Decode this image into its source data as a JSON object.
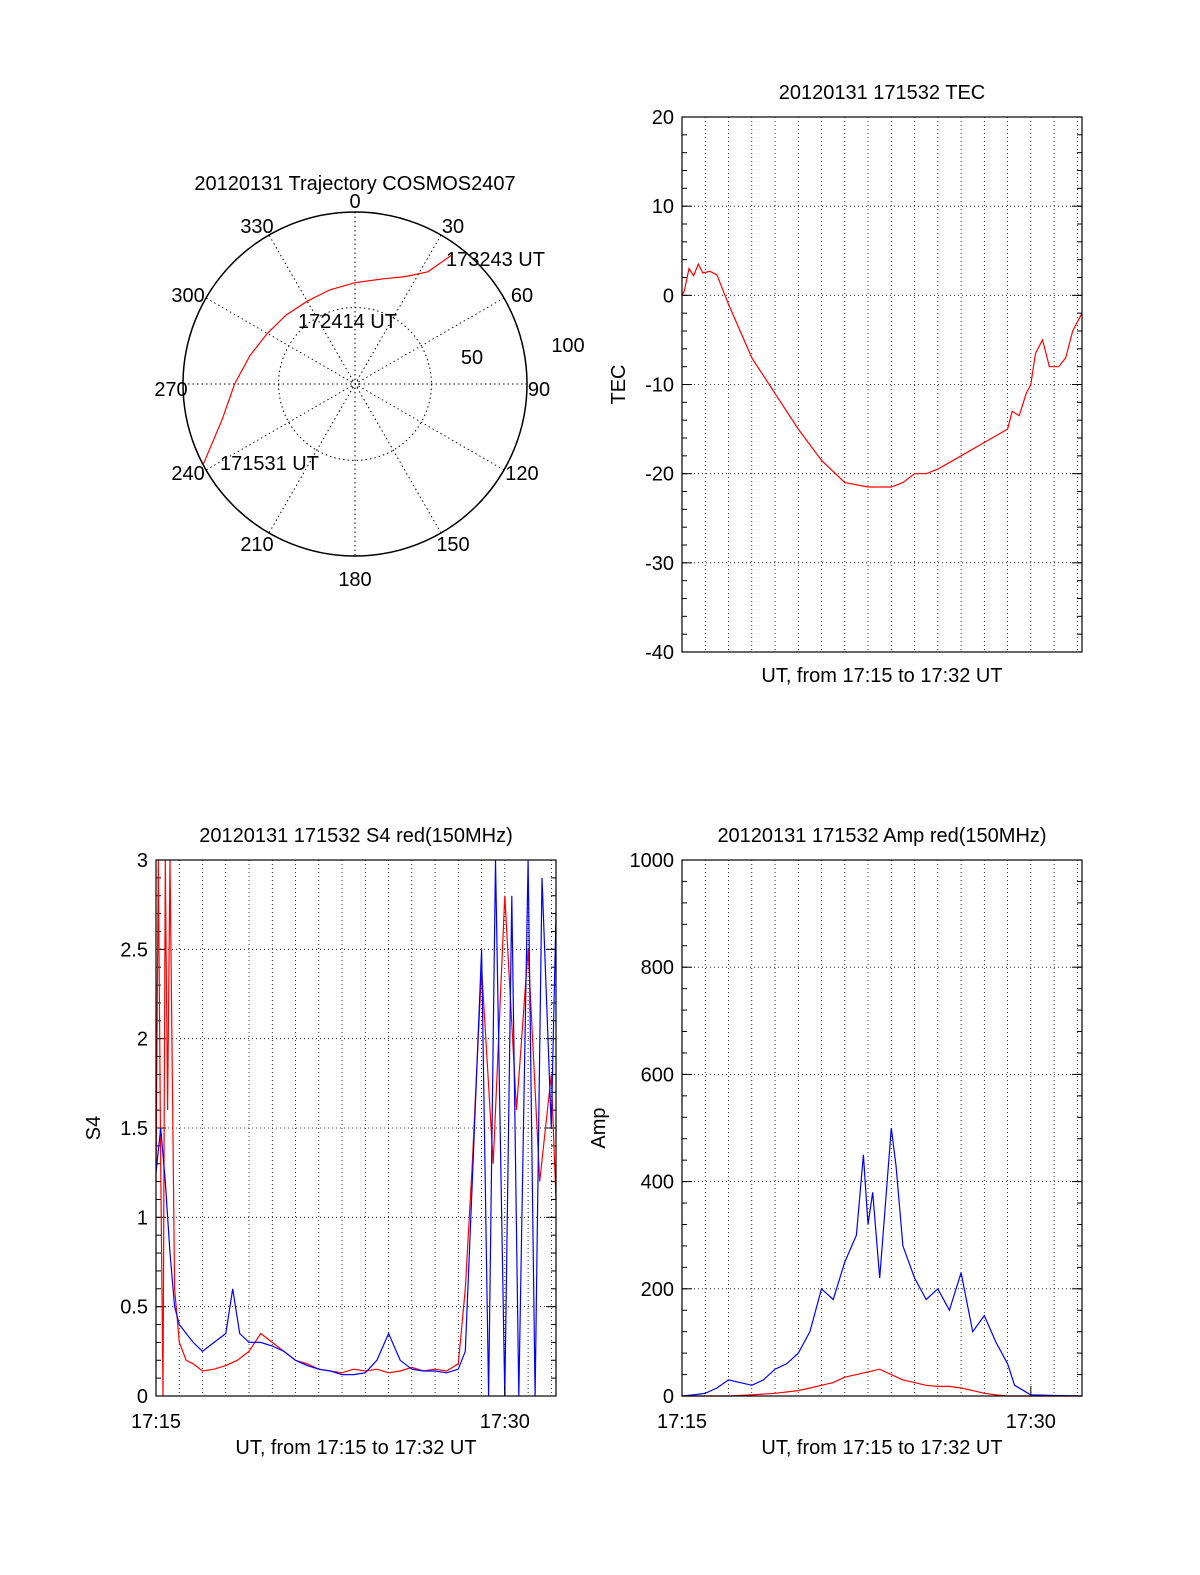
{
  "chart_data": [
    {
      "type": "polar",
      "title": "20120131 Trajectory COSMOS2407",
      "azimuth_labels": [
        "0",
        "30",
        "60",
        "90",
        "120",
        "150",
        "180",
        "210",
        "240",
        "270",
        "300",
        "330"
      ],
      "elevation_rings": [
        {
          "label": "100",
          "elevation": 0
        },
        {
          "label": "50",
          "elevation": 50
        },
        {
          "label": "",
          "elevation": 90
        }
      ],
      "series": [
        {
          "color": "#ff0000",
          "points": [
            [
              242,
              0
            ],
            [
              255,
              18
            ],
            [
              270,
              27
            ],
            [
              285,
              33
            ],
            [
              300,
              37
            ],
            [
              315,
              39
            ],
            [
              330,
              40
            ],
            [
              345,
              39
            ],
            [
              0,
              37
            ],
            [
              15,
              33
            ],
            [
              25,
              28
            ],
            [
              33,
              20
            ],
            [
              37,
              5
            ]
          ]
        }
      ],
      "annotations": [
        "171531 UT",
        "172414 UT",
        "173243 UT"
      ]
    },
    {
      "type": "line",
      "title": "20120131 171532 TEC",
      "xlabel": "UT, from 17:15 to 17:32 UT",
      "ylabel": "TEC",
      "xlim": [
        0,
        17.2
      ],
      "ylim": [
        -40,
        20
      ],
      "yticks": [
        "20",
        "10",
        "0",
        "-10",
        "-20",
        "-30",
        "-40"
      ],
      "grid": true,
      "series": [
        {
          "color": "#ff0000",
          "x": [
            0,
            0.1,
            0.3,
            0.5,
            0.7,
            0.9,
            1.2,
            1.5,
            2.0,
            3.0,
            4.0,
            5.0,
            6.0,
            7.0,
            8.0,
            9.0,
            9.5,
            10.0,
            10.5,
            11.0,
            12.0,
            13.0,
            14.0,
            14.2,
            14.5,
            14.8,
            15.0,
            15.2,
            15.5,
            15.8,
            16.2,
            16.5,
            16.8,
            17.2
          ],
          "y": [
            0,
            0.5,
            3,
            2.2,
            3.5,
            2.5,
            2.7,
            2.3,
            -1,
            -7,
            -11,
            -15,
            -18.5,
            -21,
            -21.5,
            -21.5,
            -21,
            -20,
            -20,
            -19.5,
            -18,
            -16.5,
            -15,
            -13,
            -13.5,
            -11,
            -10,
            -6.5,
            -5,
            -8,
            -8,
            -7,
            -4,
            -2
          ]
        }
      ]
    },
    {
      "type": "line",
      "title": "20120131 171532 S4 red(150MHz)",
      "xlabel": "UT, from 17:15 to 17:32 UT",
      "ylabel": "S4",
      "xticks": [
        "17:15",
        "17:30"
      ],
      "xlim": [
        0,
        17.2
      ],
      "ylim": [
        0,
        3
      ],
      "yticks": [
        "0",
        "0.5",
        "1",
        "1.5",
        "2",
        "2.5",
        "3"
      ],
      "grid": true,
      "series": [
        {
          "color": "#ff0000",
          "x": [
            0,
            0.1,
            0.2,
            0.3,
            0.4,
            0.5,
            0.6,
            0.8,
            1.0,
            1.3,
            1.6,
            2.0,
            2.5,
            3.0,
            3.5,
            4.0,
            4.5,
            5.0,
            5.5,
            6.0,
            6.5,
            7.0,
            7.5,
            8.0,
            8.5,
            9.0,
            9.5,
            10.0,
            10.5,
            11.0,
            11.5,
            12.0,
            12.5,
            13.0,
            13.3,
            13.6,
            14.0,
            14.5,
            15.0,
            15.5,
            16.0,
            16.5,
            17.0,
            17.2
          ],
          "y": [
            1.2,
            3,
            1.3,
            0,
            3,
            1.6,
            3,
            0.6,
            0.3,
            0.2,
            0.18,
            0.14,
            0.15,
            0.17,
            0.2,
            0.25,
            0.35,
            0.3,
            0.25,
            0.2,
            0.18,
            0.15,
            0.14,
            0.13,
            0.15,
            0.14,
            0.15,
            0.13,
            0.14,
            0.16,
            0.14,
            0.15,
            0.14,
            0.18,
            0.6,
            1.3,
            2.4,
            1.3,
            2.8,
            1.6,
            2.5,
            1.2,
            1.8,
            1.1
          ]
        },
        {
          "color": "#0000ff",
          "x": [
            0,
            0.2,
            0.4,
            0.6,
            0.8,
            1.0,
            1.3,
            1.6,
            2.0,
            2.5,
            3.0,
            3.3,
            3.6,
            4.0,
            4.5,
            5.0,
            5.5,
            6.0,
            6.5,
            7.0,
            7.5,
            8.0,
            8.5,
            9.0,
            9.5,
            10.0,
            10.5,
            11.0,
            11.5,
            12.0,
            12.5,
            13.0,
            13.3,
            13.6,
            14.0,
            14.3,
            14.6,
            15.0,
            15.3,
            15.6,
            16.0,
            16.3,
            16.6,
            17.0,
            17.2
          ],
          "y": [
            1.25,
            1.5,
            1.2,
            0.8,
            0.5,
            0.4,
            0.35,
            0.3,
            0.25,
            0.3,
            0.35,
            0.6,
            0.35,
            0.3,
            0.3,
            0.28,
            0.25,
            0.2,
            0.17,
            0.15,
            0.14,
            0.12,
            0.12,
            0.13,
            0.2,
            0.35,
            0.2,
            0.15,
            0.14,
            0.14,
            0.13,
            0.15,
            0.25,
            1.2,
            2.5,
            0,
            3,
            0,
            2.8,
            0,
            3,
            0,
            2.9,
            1.5,
            2.7
          ]
        }
      ]
    },
    {
      "type": "line",
      "title": "20120131 171532 Amp red(150MHz)",
      "xlabel": "UT, from 17:15 to 17:32 UT",
      "ylabel": "Amp",
      "xticks": [
        "17:15",
        "17:30"
      ],
      "xlim": [
        0,
        17.2
      ],
      "ylim": [
        0,
        1000
      ],
      "yticks": [
        "0",
        "200",
        "400",
        "600",
        "800",
        "1000"
      ],
      "grid": true,
      "series": [
        {
          "color": "#ff0000",
          "x": [
            0,
            1,
            2,
            3,
            4,
            5,
            5.5,
            6,
            6.5,
            7,
            7.5,
            8,
            8.5,
            9,
            9.5,
            10,
            10.5,
            11,
            11.5,
            12,
            12.5,
            13,
            13.5,
            14,
            15,
            16,
            17.2
          ],
          "y": [
            0,
            0,
            0,
            2,
            5,
            10,
            15,
            20,
            25,
            35,
            40,
            45,
            50,
            40,
            30,
            25,
            20,
            18,
            18,
            15,
            10,
            5,
            2,
            0,
            0,
            0,
            0
          ]
        },
        {
          "color": "#0000ff",
          "x": [
            0,
            0.5,
            1,
            1.5,
            2,
            2.5,
            3,
            3.5,
            4,
            4.5,
            5,
            5.5,
            6,
            6.5,
            7,
            7.5,
            7.8,
            8,
            8.2,
            8.5,
            9,
            9.2,
            9.5,
            10,
            10.5,
            11,
            11.5,
            12,
            12.5,
            13,
            13.5,
            14,
            14.3,
            15,
            16,
            17.2
          ],
          "y": [
            0,
            2,
            5,
            15,
            30,
            25,
            20,
            30,
            50,
            60,
            80,
            120,
            200,
            180,
            250,
            300,
            450,
            320,
            380,
            220,
            500,
            430,
            280,
            220,
            180,
            200,
            160,
            230,
            120,
            150,
            100,
            60,
            20,
            2,
            1,
            0
          ]
        }
      ]
    }
  ]
}
